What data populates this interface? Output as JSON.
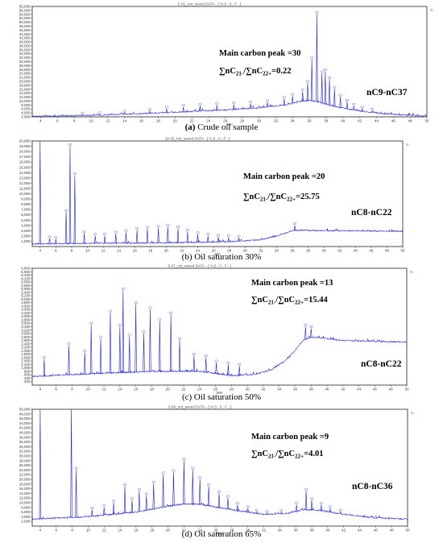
{
  "trace_color": "#1f1fd6",
  "frame_color": "#222222",
  "chart_data": [
    {
      "type": "line",
      "subtype": "gas-chromatogram",
      "header": "F-81_not_saved DATA - [ %.5 ; 0 ; F ; ]",
      "caption_prefix": "(a)",
      "caption_text": " Crude oil sample",
      "annotations": {
        "main_peak": "Main carbon peak =30",
        "ratio_value": "=0.22",
        "range": "nC9-nC37"
      },
      "xlabel": "Min",
      "x_ticks": [
        4,
        6,
        8,
        10,
        12,
        14,
        16,
        18,
        20,
        22,
        24,
        26,
        28,
        30,
        32,
        34,
        36,
        38,
        40,
        42,
        44,
        46,
        48,
        50
      ],
      "xlim": [
        3,
        50
      ],
      "y_ticks": [
        "2,000",
        "4,000",
        "6,000",
        "8,000",
        "10,000",
        "12,000",
        "14,000",
        "16,000",
        "18,000",
        "20,000",
        "22,000",
        "24,000",
        "26,000",
        "28,000",
        "30,000",
        "32,000",
        "34,000",
        "36,000",
        "38,000",
        "40,000",
        "42,000",
        "44,000",
        "46,000",
        "48,000",
        "50,000",
        "52,000",
        "54,000",
        "56,000",
        "58,000"
      ],
      "ylim": [
        2000,
        58000
      ],
      "baseline": [
        [
          3,
          2200
        ],
        [
          8,
          2600
        ],
        [
          14,
          3300
        ],
        [
          20,
          4300
        ],
        [
          26,
          5500
        ],
        [
          30,
          6600
        ],
        [
          33,
          8000
        ],
        [
          35,
          9800
        ],
        [
          36,
          10300
        ],
        [
          37,
          9600
        ],
        [
          39,
          7200
        ],
        [
          42,
          5000
        ],
        [
          45,
          3500
        ],
        [
          50,
          2300
        ]
      ],
      "peaks": [
        [
          9,
          3000
        ],
        [
          11,
          3200
        ],
        [
          14,
          4000
        ],
        [
          17,
          4800
        ],
        [
          19,
          6000
        ],
        [
          21,
          7000
        ],
        [
          23,
          7500
        ],
        [
          25,
          7800
        ],
        [
          27,
          8200
        ],
        [
          29,
          8600
        ],
        [
          31,
          9300
        ],
        [
          33,
          11000
        ],
        [
          34,
          12500
        ],
        [
          35.2,
          14800
        ],
        [
          35.8,
          19000
        ],
        [
          36.3,
          31000
        ],
        [
          36.9,
          54000
        ],
        [
          37.5,
          24000
        ],
        [
          37.9,
          25000
        ],
        [
          38.4,
          21000
        ],
        [
          39,
          16000
        ],
        [
          39.7,
          12000
        ],
        [
          40.5,
          9500
        ],
        [
          41.3,
          7500
        ],
        [
          42.3,
          6000
        ],
        [
          43.5,
          5000
        ]
      ]
    },
    {
      "type": "line",
      "subtype": "gas-chromatogram",
      "header": "18-35_not_saved DATA - [ %.5 ; 0 ; F ; ]",
      "caption_prefix": "(b)",
      "caption_text": " Oil saturation 30%",
      "annotations": {
        "main_peak": "Main carbon peak =20",
        "ratio_value": "=25.75",
        "range": "nC8-nC22"
      },
      "xlabel": "Min",
      "x_ticks": [
        4,
        6,
        8,
        10,
        12,
        14,
        16,
        18,
        20,
        22,
        24,
        26,
        28,
        30,
        32,
        34,
        36,
        38,
        40,
        42,
        44,
        46,
        48,
        50
      ],
      "xlim": [
        3,
        50
      ],
      "y_ticks": [
        "1,000",
        "2,000",
        "3,000",
        "4,000",
        "5,000",
        "6,000",
        "7,000",
        "8,000",
        "9,000",
        "10,000",
        "11,000",
        "12,000",
        "13,000",
        "14,000",
        "15,000",
        "16,000",
        "17,000",
        "18,000",
        "19,000",
        "20,000"
      ],
      "ylim": [
        0,
        20000
      ],
      "baseline": [
        [
          3,
          500
        ],
        [
          10,
          600
        ],
        [
          20,
          700
        ],
        [
          28,
          900
        ],
        [
          32,
          1300
        ],
        [
          34,
          2000
        ],
        [
          36,
          3000
        ],
        [
          37,
          3100
        ],
        [
          40,
          3000
        ],
        [
          50,
          2900
        ]
      ],
      "peaks": [
        [
          4,
          21000
        ],
        [
          5.2,
          1500
        ],
        [
          6,
          1400
        ],
        [
          7.3,
          6500
        ],
        [
          7.8,
          19000
        ],
        [
          8.4,
          13500
        ],
        [
          9.6,
          2500
        ],
        [
          11,
          2000
        ],
        [
          12.2,
          2000
        ],
        [
          13.6,
          2400
        ],
        [
          14.9,
          2700
        ],
        [
          16.3,
          3100
        ],
        [
          17.6,
          3300
        ],
        [
          19,
          3500
        ],
        [
          20.2,
          3700
        ],
        [
          21.5,
          3400
        ],
        [
          22.7,
          2800
        ],
        [
          24,
          2300
        ],
        [
          25.3,
          2000
        ],
        [
          26.6,
          1800
        ],
        [
          27.9,
          1700
        ],
        [
          29.2,
          1600
        ],
        [
          36.3,
          4000
        ]
      ]
    },
    {
      "type": "line",
      "subtype": "gas-chromatogram",
      "header": "9-47_not_saved DATA - [ %.5 ; 0 ; F ; ]",
      "caption_prefix": "(c)",
      "caption_text": " Oil saturation 50%",
      "annotations": {
        "main_peak": "Main carbon peak =13",
        "ratio_value": "=15.44",
        "range": "nC8-nC22"
      },
      "xlabel": "Min",
      "x_ticks": [
        4,
        6,
        8,
        10,
        12,
        14,
        16,
        18,
        20,
        22,
        24,
        26,
        28,
        30,
        32,
        34,
        36,
        38,
        40,
        42,
        44,
        46,
        48,
        50
      ],
      "xlim": [
        3,
        50
      ],
      "y_ticks": [
        "200",
        "400",
        "600",
        "800",
        "1,000",
        "1,200",
        "1,400",
        "1,600",
        "1,800",
        "2,000",
        "2,200",
        "2,400",
        "2,600",
        "2,800",
        "3,000",
        "3,200",
        "3,400",
        "3,600",
        "3,800",
        "4,000",
        "4,200",
        "4,400",
        "4,600",
        "4,800",
        "5,000",
        "5,200",
        "5,400",
        "5,600",
        "5,800",
        "6,000",
        "6,200",
        "6,400",
        "6,600",
        "6,800"
      ],
      "ylim": [
        0,
        6800
      ],
      "baseline": [
        [
          3,
          500
        ],
        [
          10,
          650
        ],
        [
          18,
          800
        ],
        [
          24,
          800
        ],
        [
          28,
          550
        ],
        [
          31,
          620
        ],
        [
          33,
          900
        ],
        [
          35,
          1500
        ],
        [
          37,
          2600
        ],
        [
          38,
          2800
        ],
        [
          42,
          2600
        ],
        [
          50,
          2500
        ]
      ],
      "peaks": [
        [
          4.5,
          1500
        ],
        [
          7.6,
          2300
        ],
        [
          9.6,
          1900
        ],
        [
          10.4,
          3500
        ],
        [
          11.6,
          2700
        ],
        [
          12.8,
          4200
        ],
        [
          14,
          3400
        ],
        [
          14.4,
          5500
        ],
        [
          15.2,
          2800
        ],
        [
          16,
          4700
        ],
        [
          17,
          3000
        ],
        [
          17.8,
          4400
        ],
        [
          19,
          3700
        ],
        [
          20.4,
          4100
        ],
        [
          21.5,
          2600
        ],
        [
          23.3,
          1700
        ],
        [
          24.8,
          1600
        ],
        [
          26.1,
          1300
        ],
        [
          27.6,
          1200
        ],
        [
          29,
          1100
        ],
        [
          37.3,
          3400
        ],
        [
          38,
          3300
        ]
      ]
    },
    {
      "type": "line",
      "subtype": "gas-chromatogram",
      "header": "2-86_not_saved DATA - [ %.5 ; 0 ; F ; ]",
      "caption_prefix": "(d)",
      "caption_text": " Oil saturation 65%",
      "annotations": {
        "main_peak": "Main carbon peak =9",
        "ratio_value": "=4.01",
        "range": "nC8-nC36"
      },
      "xlabel": "Min",
      "x_ticks": [
        4,
        6,
        8,
        10,
        12,
        14,
        16,
        18,
        20,
        22,
        24,
        26,
        28,
        30,
        32,
        34,
        36,
        38,
        40,
        42,
        44,
        46,
        48,
        50
      ],
      "xlim": [
        3,
        50
      ],
      "y_ticks": [
        "2,000",
        "4,000",
        "6,000",
        "8,000",
        "10,000",
        "12,000",
        "14,000",
        "16,000",
        "18,000",
        "20,000",
        "22,000",
        "24,000",
        "26,000",
        "28,000",
        "30,000",
        "32,000",
        "34,000",
        "36,000",
        "38,000",
        "40,000",
        "42,000",
        "44,000",
        "46,000",
        "48,000",
        "50,000"
      ],
      "ylim": [
        0,
        50000
      ],
      "baseline": [
        [
          3,
          3000
        ],
        [
          10,
          4000
        ],
        [
          16,
          6000
        ],
        [
          20,
          8500
        ],
        [
          22,
          9500
        ],
        [
          24,
          9300
        ],
        [
          28,
          7000
        ],
        [
          32,
          5000
        ],
        [
          35,
          5500
        ],
        [
          37,
          7000
        ],
        [
          39,
          6800
        ],
        [
          42,
          5000
        ],
        [
          46,
          3500
        ],
        [
          50,
          3000
        ]
      ],
      "peaks": [
        [
          4,
          52000
        ],
        [
          7.9,
          51000
        ],
        [
          8.5,
          24000
        ],
        [
          10.5,
          7000
        ],
        [
          12,
          8000
        ],
        [
          13.2,
          10000
        ],
        [
          14.6,
          17000
        ],
        [
          15.5,
          11000
        ],
        [
          16.4,
          15000
        ],
        [
          17.3,
          13000
        ],
        [
          18.2,
          18000
        ],
        [
          19.4,
          22000
        ],
        [
          20.7,
          23000
        ],
        [
          22,
          28000
        ],
        [
          23.1,
          24000
        ],
        [
          24,
          20000
        ],
        [
          25.1,
          17000
        ],
        [
          26.4,
          14000
        ],
        [
          27.5,
          12000
        ],
        [
          28.7,
          9000
        ],
        [
          30,
          7500
        ],
        [
          31.1,
          6000
        ],
        [
          32.4,
          5500
        ],
        [
          34.2,
          6000
        ],
        [
          36.1,
          9000
        ],
        [
          37.3,
          15000
        ],
        [
          38,
          11000
        ],
        [
          39.2,
          9000
        ],
        [
          40.3,
          7500
        ],
        [
          41.6,
          6000
        ]
      ]
    }
  ]
}
